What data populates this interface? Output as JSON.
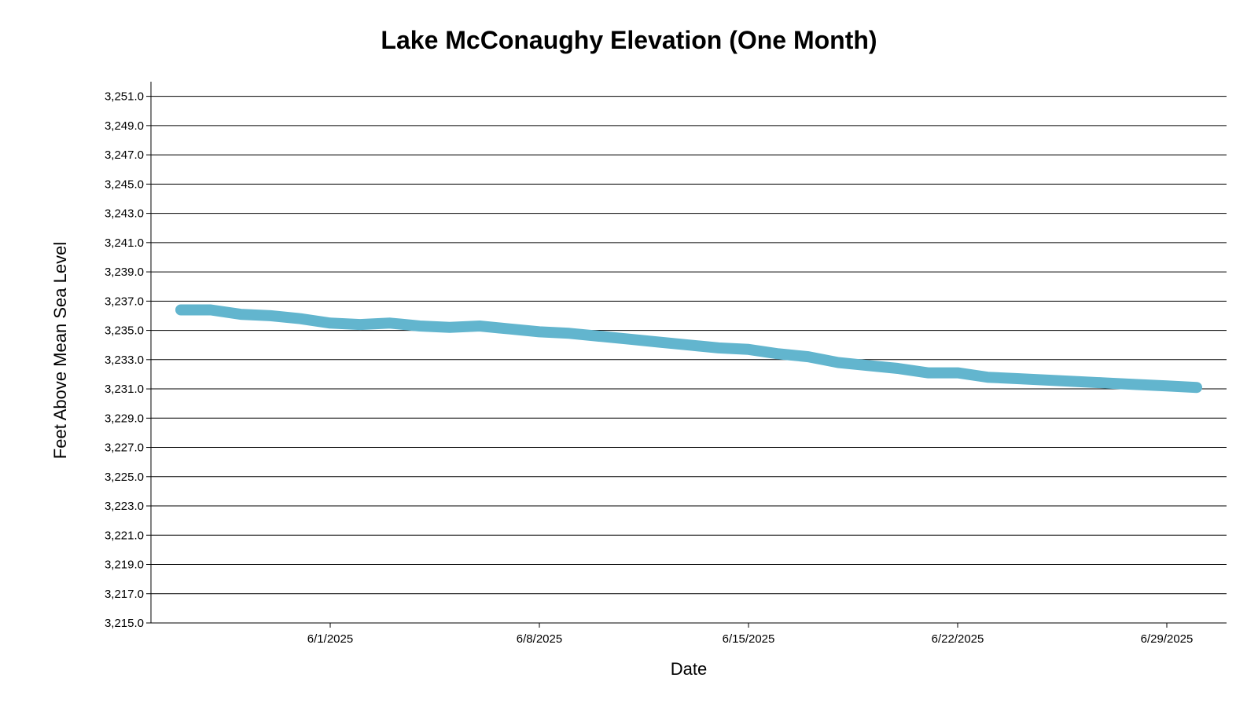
{
  "chart_data": {
    "type": "line",
    "title": "Lake McConaughy Elevation (One Month)",
    "xlabel": "Date",
    "ylabel": "Feet Above Mean Sea Level",
    "x_ticks": [
      "6/1/2025",
      "6/8/2025",
      "6/15/2025",
      "6/22/2025",
      "6/29/2025"
    ],
    "x_tick_dates": [
      "2025-06-01",
      "2025-06-08",
      "2025-06-15",
      "2025-06-22",
      "2025-06-29"
    ],
    "y_ticks": [
      "3,215.0",
      "3,217.0",
      "3,219.0",
      "3,221.0",
      "3,223.0",
      "3,225.0",
      "3,227.0",
      "3,229.0",
      "3,231.0",
      "3,233.0",
      "3,235.0",
      "3,237.0",
      "3,239.0",
      "3,241.0",
      "3,243.0",
      "3,245.0",
      "3,247.0",
      "3,249.0",
      "3,251.0"
    ],
    "xlim": [
      "2025-05-26",
      "2025-07-01"
    ],
    "ylim": [
      3215.0,
      3252.0
    ],
    "grid": true,
    "line_color": "#62b5ce",
    "series": [
      {
        "x": [
          "2025-05-27",
          "2025-05-28",
          "2025-05-29",
          "2025-05-30",
          "2025-05-31",
          "2025-06-01",
          "2025-06-02",
          "2025-06-03",
          "2025-06-04",
          "2025-06-05",
          "2025-06-06",
          "2025-06-07",
          "2025-06-08",
          "2025-06-09",
          "2025-06-10",
          "2025-06-11",
          "2025-06-12",
          "2025-06-13",
          "2025-06-14",
          "2025-06-15",
          "2025-06-16",
          "2025-06-17",
          "2025-06-18",
          "2025-06-19",
          "2025-06-20",
          "2025-06-21",
          "2025-06-22",
          "2025-06-23",
          "2025-06-24",
          "2025-06-25",
          "2025-06-26",
          "2025-06-27",
          "2025-06-28",
          "2025-06-29",
          "2025-06-30"
        ],
        "values": [
          3236.4,
          3236.4,
          3236.1,
          3236.0,
          3235.8,
          3235.5,
          3235.4,
          3235.5,
          3235.3,
          3235.2,
          3235.3,
          3235.1,
          3234.9,
          3234.8,
          3234.6,
          3234.4,
          3234.2,
          3234.0,
          3233.8,
          3233.7,
          3233.4,
          3233.2,
          3232.8,
          3232.6,
          3232.4,
          3232.1,
          3232.1,
          3231.8,
          3231.7,
          3231.6,
          3231.5,
          3231.4,
          3231.3,
          3231.2,
          3231.1
        ]
      }
    ]
  }
}
